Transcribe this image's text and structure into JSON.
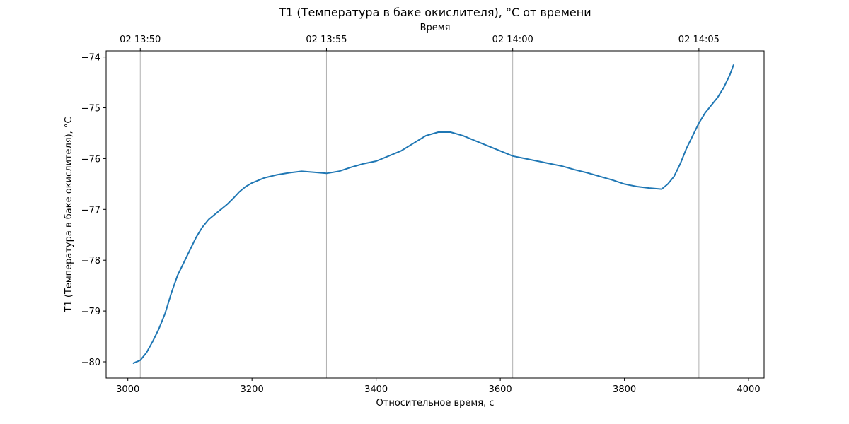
{
  "chart_data": {
    "type": "line",
    "title": "T1 (Температура в баке окислителя), °C от времени",
    "xlabel": "Относительное время, с",
    "ylabel": "T1 (Температура в баке окислителя), °C",
    "top_axis_label": "Время",
    "xlim": [
      2965,
      4025
    ],
    "ylim": [
      -80.32,
      -73.88
    ],
    "x_ticks": [
      3000,
      3200,
      3400,
      3600,
      3800,
      4000
    ],
    "y_ticks": [
      -80,
      -79,
      -78,
      -77,
      -76,
      -75,
      -74
    ],
    "top_ticks": [
      {
        "x": 3020,
        "label": "02 13:50"
      },
      {
        "x": 3320,
        "label": "02 13:55"
      },
      {
        "x": 3620,
        "label": "02 14:00"
      },
      {
        "x": 3920,
        "label": "02 14:05"
      }
    ],
    "grid": "vertical lines at top-axis ticks",
    "series": [
      {
        "color": "#1f77b4",
        "points": [
          [
            3008,
            -80.03
          ],
          [
            3020,
            -79.97
          ],
          [
            3030,
            -79.82
          ],
          [
            3040,
            -79.6
          ],
          [
            3050,
            -79.35
          ],
          [
            3060,
            -79.05
          ],
          [
            3070,
            -78.65
          ],
          [
            3080,
            -78.3
          ],
          [
            3090,
            -78.05
          ],
          [
            3100,
            -77.8
          ],
          [
            3110,
            -77.55
          ],
          [
            3120,
            -77.35
          ],
          [
            3130,
            -77.2
          ],
          [
            3140,
            -77.1
          ],
          [
            3150,
            -77.0
          ],
          [
            3160,
            -76.9
          ],
          [
            3170,
            -76.78
          ],
          [
            3180,
            -76.65
          ],
          [
            3190,
            -76.55
          ],
          [
            3200,
            -76.48
          ],
          [
            3220,
            -76.38
          ],
          [
            3240,
            -76.32
          ],
          [
            3260,
            -76.28
          ],
          [
            3280,
            -76.25
          ],
          [
            3300,
            -76.27
          ],
          [
            3320,
            -76.29
          ],
          [
            3340,
            -76.25
          ],
          [
            3360,
            -76.17
          ],
          [
            3380,
            -76.1
          ],
          [
            3400,
            -76.05
          ],
          [
            3420,
            -75.95
          ],
          [
            3440,
            -75.85
          ],
          [
            3460,
            -75.7
          ],
          [
            3480,
            -75.55
          ],
          [
            3500,
            -75.48
          ],
          [
            3520,
            -75.48
          ],
          [
            3540,
            -75.55
          ],
          [
            3560,
            -75.65
          ],
          [
            3580,
            -75.75
          ],
          [
            3600,
            -75.85
          ],
          [
            3620,
            -75.95
          ],
          [
            3640,
            -76.0
          ],
          [
            3660,
            -76.05
          ],
          [
            3680,
            -76.1
          ],
          [
            3700,
            -76.15
          ],
          [
            3720,
            -76.22
          ],
          [
            3740,
            -76.28
          ],
          [
            3760,
            -76.35
          ],
          [
            3780,
            -76.42
          ],
          [
            3800,
            -76.5
          ],
          [
            3820,
            -76.55
          ],
          [
            3840,
            -76.58
          ],
          [
            3860,
            -76.6
          ],
          [
            3870,
            -76.5
          ],
          [
            3880,
            -76.35
          ],
          [
            3890,
            -76.1
          ],
          [
            3900,
            -75.8
          ],
          [
            3910,
            -75.55
          ],
          [
            3920,
            -75.3
          ],
          [
            3930,
            -75.1
          ],
          [
            3940,
            -74.95
          ],
          [
            3950,
            -74.8
          ],
          [
            3960,
            -74.6
          ],
          [
            3970,
            -74.35
          ],
          [
            3976,
            -74.15
          ]
        ]
      }
    ]
  }
}
